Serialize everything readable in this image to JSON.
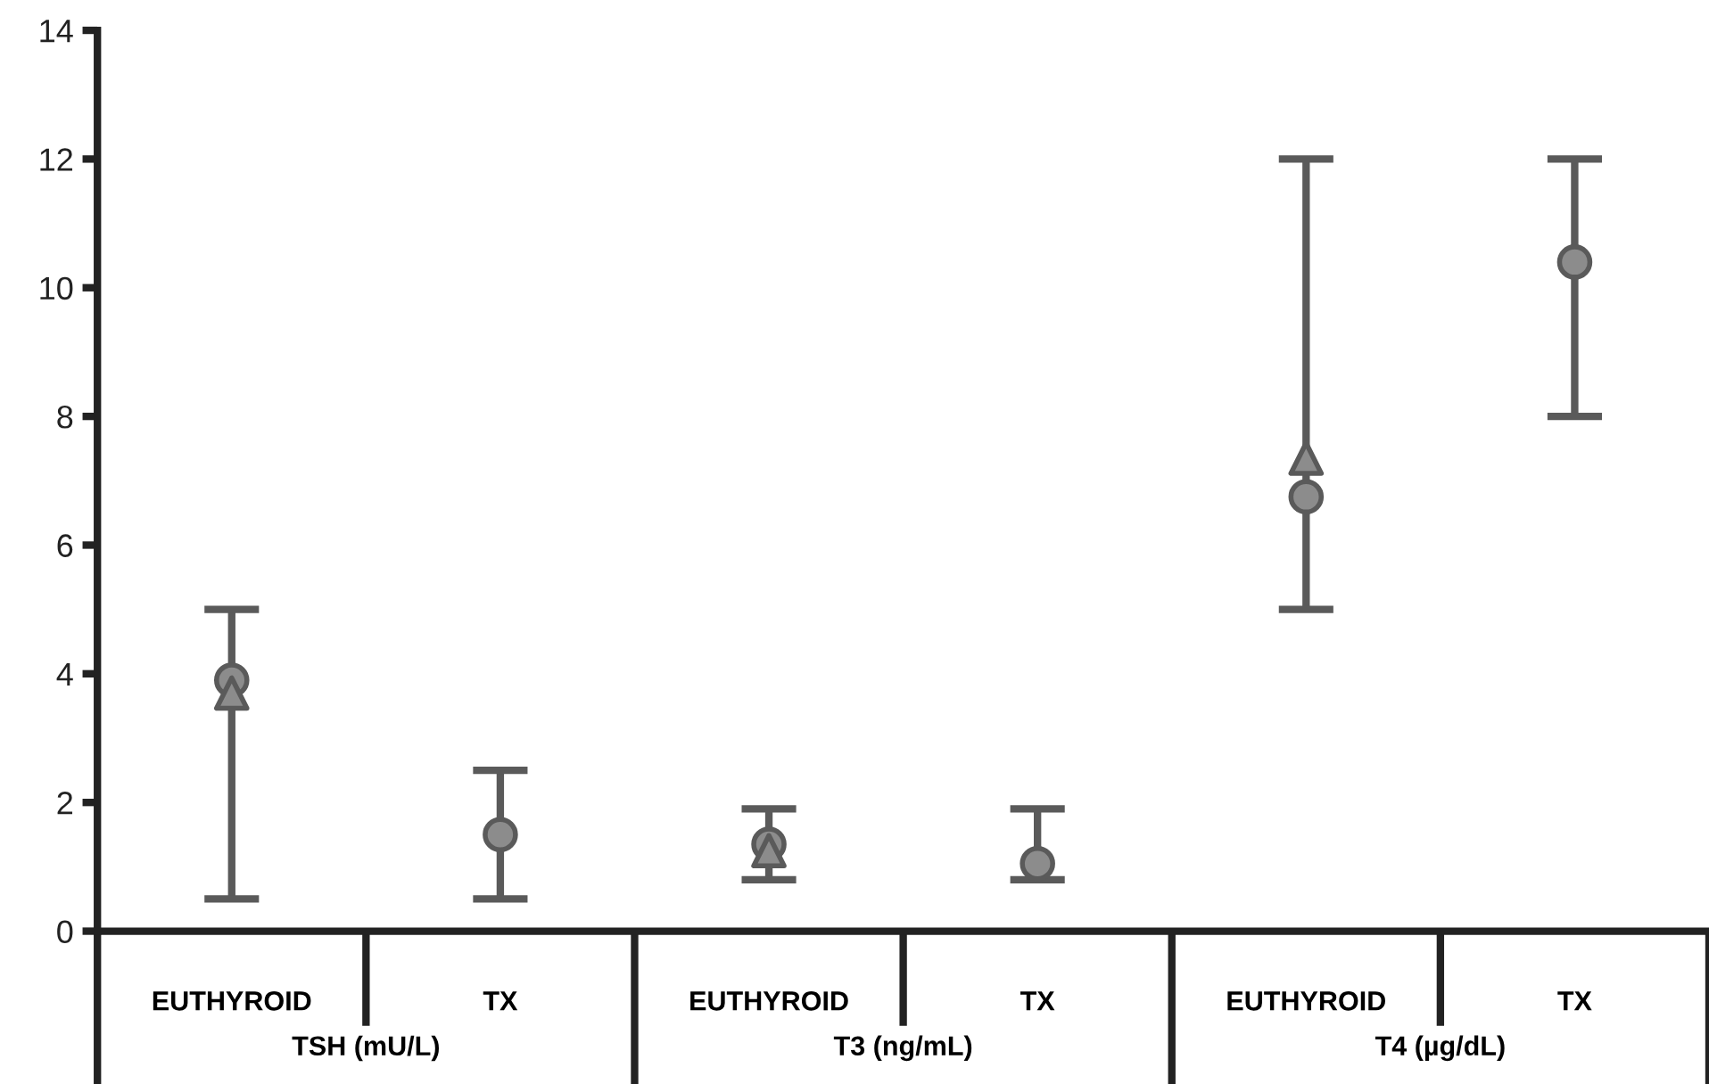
{
  "chart_data": {
    "type": "scatter",
    "categories": [
      "EUTHYROID",
      "TX",
      "EUTHYROID",
      "TX",
      "EUTHYROID",
      "TX"
    ],
    "annotations": [
      "TSH (mU/L)",
      "T3 (ng/mL)",
      "T4 (µg/dL)"
    ],
    "series": [
      {
        "color": "#8c8c8c",
        "marker": "circle",
        "values": [
          3.9,
          1.5,
          1.35,
          1.05,
          6.75,
          10.4
        ],
        "errors": [
          [
            0.5,
            5
          ],
          [
            0.5,
            2.5
          ],
          [
            0.8,
            1.9
          ],
          [
            0.8,
            1.9
          ],
          [
            5,
            12
          ],
          [
            8,
            12
          ]
        ]
      },
      {
        "color": "#8c8c8c",
        "marker": "triangle",
        "values": [
          3.7,
          null,
          1.25,
          null,
          7.35,
          null
        ]
      }
    ],
    "ylim": [
      0,
      14
    ],
    "yticks": [
      0,
      2,
      4,
      6,
      8,
      10,
      12,
      14
    ],
    "grid": false,
    "legend": false
  }
}
